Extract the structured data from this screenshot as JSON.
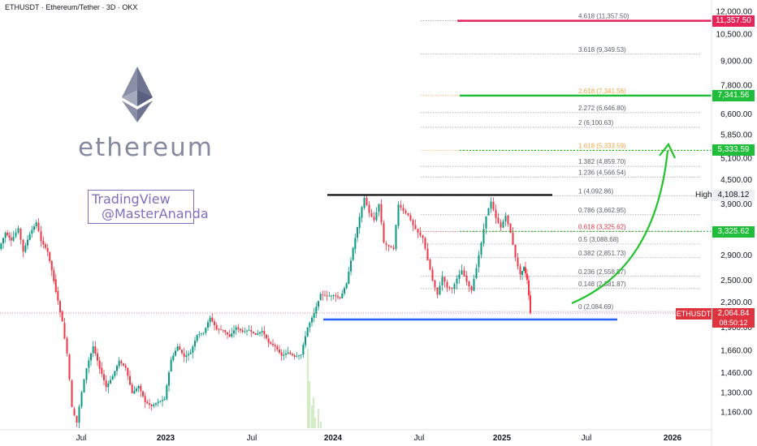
{
  "header": {
    "title": "ETHUSDT · Ethereum/Tether · 3D · OKX"
  },
  "brand": {
    "wordmark": "ethereum",
    "box_line1": "TradingView",
    "box_line2": "@MasterAnanda"
  },
  "colors": {
    "up": "#089981",
    "down": "#f23645",
    "fib": "#9598a1",
    "fib_red": "#e03340",
    "fib_orange": "#f5a442",
    "green": "#1fbd3a",
    "magenta": "#e5245a",
    "blue": "#2962ff",
    "arrow": "#22c42e",
    "wick": "#1d7a2c"
  },
  "tags": {
    "p11357": "11,357.50",
    "p7341": "7,341.56",
    "p5333": "5,333.59",
    "p3325": "3,325.62",
    "high_label": "High",
    "high_value": "4,108.12",
    "ticker": "ETHUSDT",
    "last": "2,064.84",
    "countdown": "08:50:12"
  },
  "chart_data": {
    "type": "candlestick",
    "title": "ETHUSDT · Ethereum/Tether · 3D · OKX",
    "y_scale": "log",
    "ylim": [
      1050,
      13000
    ],
    "y_ticks": [
      12000,
      10500,
      9000,
      7800,
      6600,
      5850,
      5100,
      4500,
      3900,
      2900,
      2500,
      2200,
      1900,
      1660,
      1460,
      1300,
      1160
    ],
    "y_tick_labels": [
      "12,000.00",
      "10,500.00",
      "9,000.00",
      "7,800.00",
      "6,600.00",
      "5,850.00",
      "5,100.00",
      "4,500.00",
      "3,900.00",
      "2,900.00",
      "2,500.00",
      "2,200.00",
      "1,900.00",
      "1,660.00",
      "1,460.00",
      "1,300.00",
      "1,160.00"
    ],
    "x_ticks": [
      "Jul",
      "2023",
      "Jul",
      "2024",
      "Jul",
      "2025",
      "Jul",
      "2026"
    ],
    "fib_levels": [
      {
        "label": "4.618 (11,357.50)",
        "value": 11357.5,
        "color": "fib"
      },
      {
        "label": "3.618 (9,349.53)",
        "value": 9349.53,
        "color": "fib"
      },
      {
        "label": "2.618 (7,341.56)",
        "value": 7341.56,
        "color": "fib_orange"
      },
      {
        "label": "2.272 (6,646.80)",
        "value": 6646.8,
        "color": "fib"
      },
      {
        "label": "2 (6,100.63)",
        "value": 6100.63,
        "color": "fib"
      },
      {
        "label": "1.618 (5,333.59)",
        "value": 5333.59,
        "color": "fib_orange"
      },
      {
        "label": "1.382 (4,859.70)",
        "value": 4859.7,
        "color": "fib"
      },
      {
        "label": "1.236 (4,566.54)",
        "value": 4566.54,
        "color": "fib"
      },
      {
        "label": "1 (4,092.86)",
        "value": 4092.86,
        "color": "fib"
      },
      {
        "label": "0.786 (3,662.95)",
        "value": 3662.95,
        "color": "fib"
      },
      {
        "label": "0.618 (3,325.62)",
        "value": 3325.62,
        "color": "fib_red"
      },
      {
        "label": "0.5 (3,088.68)",
        "value": 3088.68,
        "color": "fib"
      },
      {
        "label": "0.382 (2,851.73)",
        "value": 2851.73,
        "color": "fib"
      },
      {
        "label": "0.236 (2,558.57)",
        "value": 2558.57,
        "color": "fib"
      },
      {
        "label": "0.148 (2,381.87)",
        "value": 2381.87,
        "color": "fib"
      },
      {
        "label": "0 (2,084.69)",
        "value": 2084.69,
        "color": "fib"
      }
    ],
    "price_line": 2064.84,
    "resistance": 4092.86,
    "support": 1990,
    "targets": [
      11357.5,
      7341.56,
      5333.59,
      3325.62
    ],
    "price_path": [
      [
        0,
        3000
      ],
      [
        8,
        3300
      ],
      [
        15,
        3150
      ],
      [
        24,
        3380
      ],
      [
        30,
        2950
      ],
      [
        38,
        3280
      ],
      [
        46,
        3500
      ],
      [
        52,
        3150
      ],
      [
        60,
        2950
      ],
      [
        70,
        2350
      ],
      [
        78,
        1950
      ],
      [
        84,
        1620
      ],
      [
        90,
        1180
      ],
      [
        96,
        1090
      ],
      [
        102,
        1300
      ],
      [
        108,
        1500
      ],
      [
        116,
        1700
      ],
      [
        124,
        1500
      ],
      [
        132,
        1340
      ],
      [
        140,
        1430
      ],
      [
        148,
        1560
      ],
      [
        156,
        1500
      ],
      [
        164,
        1290
      ],
      [
        172,
        1350
      ],
      [
        180,
        1230
      ],
      [
        188,
        1200
      ],
      [
        196,
        1230
      ],
      [
        204,
        1250
      ],
      [
        212,
        1570
      ],
      [
        220,
        1700
      ],
      [
        228,
        1600
      ],
      [
        236,
        1640
      ],
      [
        244,
        1820
      ],
      [
        252,
        1840
      ],
      [
        260,
        2010
      ],
      [
        268,
        1880
      ],
      [
        276,
        1870
      ],
      [
        284,
        1800
      ],
      [
        292,
        1900
      ],
      [
        300,
        1850
      ],
      [
        308,
        1870
      ],
      [
        316,
        1820
      ],
      [
        324,
        1860
      ],
      [
        332,
        1740
      ],
      [
        340,
        1700
      ],
      [
        348,
        1610
      ],
      [
        356,
        1640
      ],
      [
        364,
        1600
      ],
      [
        372,
        1620
      ],
      [
        380,
        1900
      ],
      [
        388,
        2060
      ],
      [
        396,
        2300
      ],
      [
        404,
        2280
      ],
      [
        412,
        2290
      ],
      [
        420,
        2250
      ],
      [
        428,
        2450
      ],
      [
        436,
        3000
      ],
      [
        444,
        3600
      ],
      [
        450,
        4050
      ],
      [
        456,
        3700
      ],
      [
        462,
        3550
      ],
      [
        468,
        3900
      ],
      [
        474,
        3100
      ],
      [
        480,
        3050
      ],
      [
        486,
        3000
      ],
      [
        492,
        3880
      ],
      [
        498,
        3750
      ],
      [
        504,
        3650
      ],
      [
        510,
        3450
      ],
      [
        516,
        3300
      ],
      [
        522,
        3200
      ],
      [
        528,
        2820
      ],
      [
        534,
        2500
      ],
      [
        540,
        2300
      ],
      [
        546,
        2550
      ],
      [
        552,
        2400
      ],
      [
        558,
        2380
      ],
      [
        564,
        2520
      ],
      [
        570,
        2650
      ],
      [
        576,
        2480
      ],
      [
        582,
        2350
      ],
      [
        588,
        2700
      ],
      [
        594,
        3100
      ],
      [
        600,
        3650
      ],
      [
        606,
        3950
      ],
      [
        612,
        3600
      ],
      [
        618,
        3400
      ],
      [
        624,
        3650
      ],
      [
        630,
        3300
      ],
      [
        636,
        2850
      ],
      [
        642,
        2580
      ],
      [
        646,
        2700
      ],
      [
        650,
        2500
      ],
      [
        654,
        2064
      ]
    ]
  }
}
